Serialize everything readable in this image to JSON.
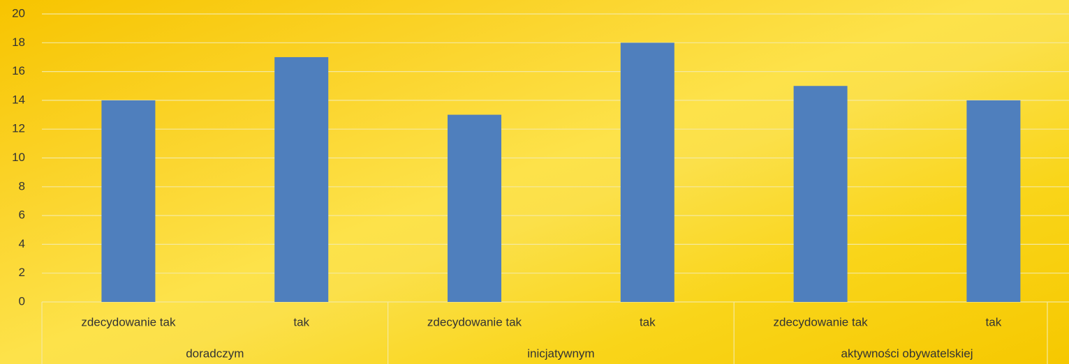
{
  "chart_data": {
    "type": "bar",
    "categories": [
      "zdecydowanie tak",
      "tak",
      "zdecydowanie tak",
      "tak",
      "zdecydowanie tak",
      "tak"
    ],
    "groups": [
      "doradczym",
      "inicjatywnym",
      "aktywności obywatelskiej"
    ],
    "values": [
      14,
      17,
      13,
      18,
      15,
      14
    ],
    "color": "#4f7fbd",
    "ylim": [
      0,
      20
    ],
    "yticks": [
      0,
      2,
      4,
      6,
      8,
      10,
      12,
      14,
      16,
      18,
      20
    ],
    "grid": true
  }
}
